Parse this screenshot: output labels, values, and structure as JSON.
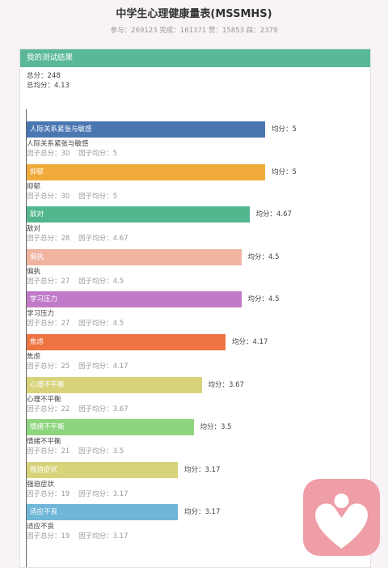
{
  "page": {
    "title": "中学生心理健康量表(MSSMHS)",
    "stats": "参与：269123 完成：161371 赞：15853 踩：2379"
  },
  "result": {
    "header": "我的测试结果",
    "total_score": "总分：248",
    "total_average": "总均分：4.13"
  },
  "chart_data": {
    "type": "bar",
    "orientation": "horizontal",
    "xlim": [
      0,
      5
    ],
    "categories": [
      "人际关系紧张与敏感",
      "抑郁",
      "敌对",
      "偏执",
      "学习压力",
      "焦虑",
      "心理不平衡",
      "情绪不平衡",
      "强迫症状",
      "适应不良"
    ],
    "values": [
      5,
      5,
      4.67,
      4.5,
      4.5,
      4.17,
      3.67,
      3.5,
      3.17,
      3.17
    ],
    "colors": [
      "#4a76b2",
      "#f0aa3a",
      "#52b78d",
      "#f0b4a0",
      "#c07ac8",
      "#ee7442",
      "#d8d37a",
      "#8dd57e",
      "#d8d37a",
      "#6fb7d8"
    ],
    "rows": [
      {
        "label": "人际关系紧张与敏感",
        "avg": "均分：5",
        "name": "人际关系紧张与敏感",
        "meta": "因子总分：30    因子均分：5"
      },
      {
        "label": "抑郁",
        "avg": "均分：5",
        "name": "抑郁",
        "meta": "因子总分：30    因子均分：5"
      },
      {
        "label": "敌对",
        "avg": "均分：4.67",
        "name": "敌对",
        "meta": "因子总分：28    因子均分：4.67"
      },
      {
        "label": "偏执",
        "avg": "均分：4.5",
        "name": "偏执",
        "meta": "因子总分：27    因子均分：4.5"
      },
      {
        "label": "学习压力",
        "avg": "均分：4.5",
        "name": "学习压力",
        "meta": "因子总分：27    因子均分：4.5"
      },
      {
        "label": "焦虑",
        "avg": "均分：4.17",
        "name": "焦虑",
        "meta": "因子总分：25    因子均分：4.17"
      },
      {
        "label": "心理不平衡",
        "avg": "均分：3.67",
        "name": "心理不平衡",
        "meta": "因子总分：22    因子均分：3.67"
      },
      {
        "label": "情绪不平衡",
        "avg": "均分：3.5",
        "name": "情绪不平衡",
        "meta": "因子总分：21    因子均分：3.5"
      },
      {
        "label": "强迫症状",
        "avg": "均分：3.17",
        "name": "强迫症状",
        "meta": "因子总分：19    因子均分：3.17"
      },
      {
        "label": "适应不良",
        "avg": "均分：3.17",
        "name": "适应不良",
        "meta": "因子总分：19    因子均分：3.17"
      }
    ]
  },
  "logo": {
    "icon": "heart-person-icon",
    "color": "#ef9da6"
  }
}
